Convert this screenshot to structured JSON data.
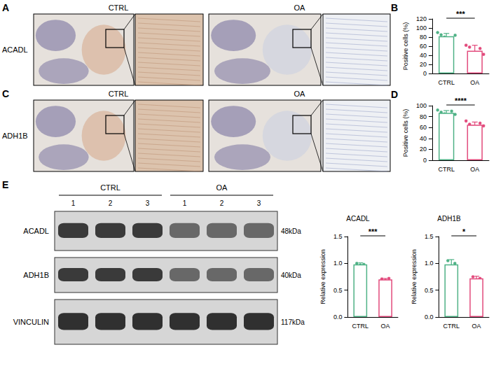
{
  "ihc": [
    {
      "letter": "A",
      "marker": "ACADL",
      "groups": [
        "CTRL",
        "OA"
      ]
    },
    {
      "letter": "C",
      "marker": "ADH1B",
      "groups": [
        "CTRL",
        "OA"
      ]
    }
  ],
  "blot": {
    "letter": "E",
    "groups": [
      {
        "label": "CTRL",
        "lanes": [
          "1",
          "2",
          "3"
        ]
      },
      {
        "label": "OA",
        "lanes": [
          "1",
          "2",
          "3"
        ]
      }
    ],
    "rows": [
      {
        "protein": "ACADL",
        "size": "48kDa"
      },
      {
        "protein": "ADH1B",
        "size": "40kDa"
      },
      {
        "protein": "VINCULIN",
        "size": "117kDa"
      }
    ]
  },
  "chart_data": [
    {
      "panel": "B",
      "type": "bar",
      "ylabel": "Positive cells (%)",
      "categories": [
        "CTRL",
        "OA"
      ],
      "values": [
        82,
        50
      ],
      "errors": [
        6,
        12
      ],
      "points": [
        [
          90,
          85,
          80,
          78,
          75,
          84
        ],
        [
          62,
          58,
          45,
          35,
          55,
          42
        ]
      ],
      "colors": [
        "#4fb286",
        "#e24a7c"
      ],
      "ylim": [
        0,
        120
      ],
      "yticks": [
        0,
        20,
        40,
        60,
        80,
        100,
        120
      ],
      "grid": false,
      "annotation": "***"
    },
    {
      "panel": "D",
      "type": "bar",
      "ylabel": "Positive cells (%)",
      "categories": [
        "CTRL",
        "OA"
      ],
      "values": [
        87,
        65
      ],
      "errors": [
        4,
        5
      ],
      "points": [
        [
          92,
          88,
          85,
          80,
          90,
          84
        ],
        [
          72,
          66,
          62,
          60,
          68,
          63
        ]
      ],
      "colors": [
        "#4fb286",
        "#e24a7c"
      ],
      "ylim": [
        0,
        100
      ],
      "yticks": [
        0,
        20,
        40,
        60,
        80,
        100
      ],
      "grid": false,
      "annotation": "****"
    },
    {
      "title": "ACADL",
      "type": "bar",
      "ylabel": "Relative expression",
      "categories": [
        "CTRL",
        "OA"
      ],
      "values": [
        0.98,
        0.7
      ],
      "errors": [
        0.03,
        0.02
      ],
      "points": [
        [
          1.0,
          0.97,
          0.98
        ],
        [
          0.71,
          0.69,
          0.72
        ]
      ],
      "colors": [
        "#4fb286",
        "#e24a7c"
      ],
      "ylim": [
        0,
        1.5
      ],
      "yticks": [
        {
          "value": 0,
          "label": "0.0"
        },
        {
          "value": 0.5,
          "label": "0.5"
        },
        {
          "value": 1,
          "label": "1.0"
        },
        {
          "value": 1.5,
          "label": "1.5"
        }
      ],
      "grid": false,
      "annotation": "***"
    },
    {
      "title": "ADH1B",
      "type": "bar",
      "ylabel": "Relative expression",
      "categories": [
        "CTRL",
        "OA"
      ],
      "values": [
        0.98,
        0.72
      ],
      "errors": [
        0.09,
        0.04
      ],
      "points": [
        [
          1.05,
          0.88,
          1.0
        ],
        [
          0.75,
          0.68,
          0.72
        ]
      ],
      "colors": [
        "#4fb286",
        "#e24a7c"
      ],
      "ylim": [
        0,
        1.5
      ],
      "yticks": [
        {
          "value": 0,
          "label": "0.0"
        },
        {
          "value": 0.5,
          "label": "0.5"
        },
        {
          "value": 1,
          "label": "1.0"
        },
        {
          "value": 1.5,
          "label": "1.5"
        }
      ],
      "grid": false,
      "annotation": "*"
    }
  ]
}
